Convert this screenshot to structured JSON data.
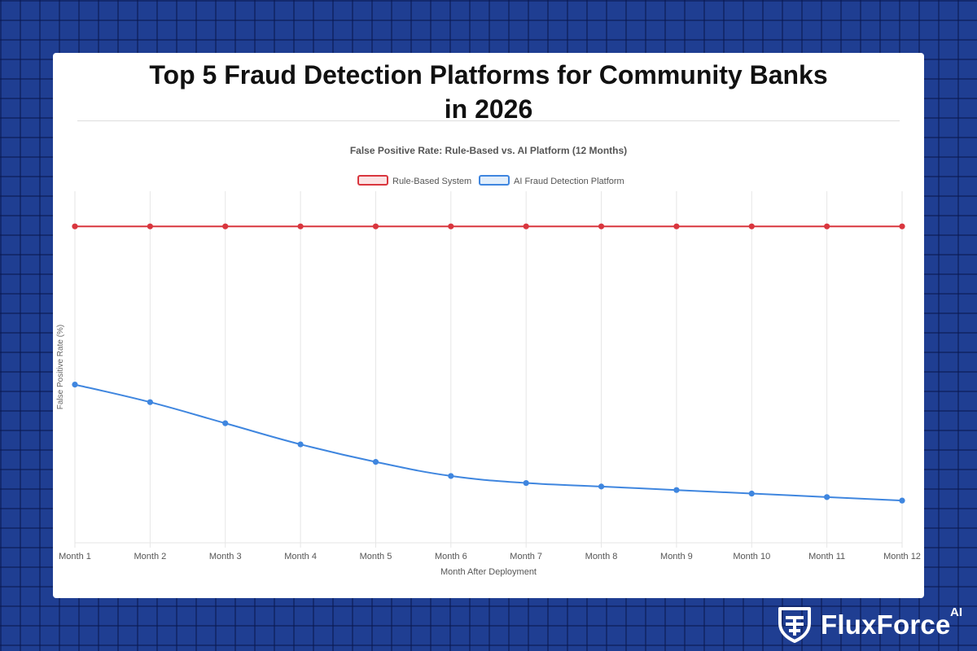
{
  "page": {
    "title_line1": "Top 5 Fraud Detection Platforms for Community Banks",
    "title_line2": "in 2026"
  },
  "brand": {
    "name": "FluxForce",
    "suffix": "AI",
    "icon": "shield-logo-icon"
  },
  "colors": {
    "background": "#1f3e92",
    "rule_based": "#d9363e",
    "ai_platform": "#3f86df"
  },
  "chart_data": {
    "type": "line",
    "title": "False Positive Rate: Rule-Based vs. AI Platform (12 Months)",
    "xlabel": "Month After Deployment",
    "ylabel": "False Positive Rate (%)",
    "categories": [
      "Month 1",
      "Month 2",
      "Month 3",
      "Month 4",
      "Month 5",
      "Month 6",
      "Month 7",
      "Month 8",
      "Month 9",
      "Month 10",
      "Month 11",
      "Month 12"
    ],
    "ylim": [
      0,
      100
    ],
    "y_ticks_shown": false,
    "grid": "vertical",
    "legend_position": "top",
    "series": [
      {
        "name": "Rule-Based System",
        "color": "#d9363e",
        "values": [
          90,
          90,
          90,
          90,
          90,
          90,
          90,
          90,
          90,
          90,
          90,
          90
        ]
      },
      {
        "name": "AI Fraud Detection Platform",
        "color": "#3f86df",
        "values": [
          45,
          40,
          34,
          28,
          23,
          19,
          17,
          16,
          15,
          14,
          13,
          12
        ]
      }
    ]
  }
}
